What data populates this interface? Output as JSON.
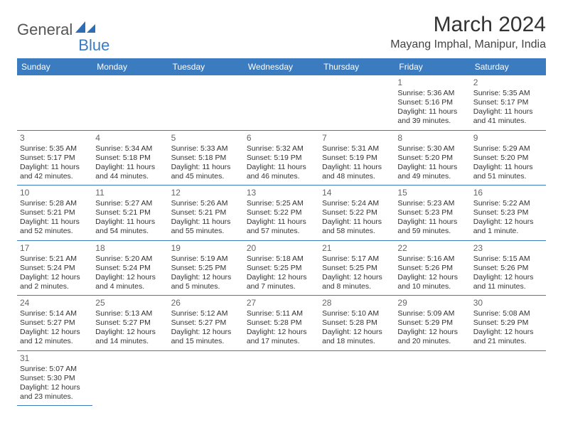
{
  "brand": {
    "part1": "General",
    "part2": "Blue"
  },
  "title": "March 2024",
  "location": "Mayang Imphal, Manipur, India",
  "weekdays": [
    "Sunday",
    "Monday",
    "Tuesday",
    "Wednesday",
    "Thursday",
    "Friday",
    "Saturday"
  ],
  "colors": {
    "header_bg": "#3b7bbf",
    "header_fg": "#ffffff",
    "border": "#3b7bbf",
    "daynum": "#666666",
    "text": "#333333",
    "logo_gray": "#555555",
    "logo_blue": "#3b7bbf"
  },
  "grid": [
    [
      null,
      null,
      null,
      null,
      null,
      {
        "n": "1",
        "sunrise": "Sunrise: 5:36 AM",
        "sunset": "Sunset: 5:16 PM",
        "day1": "Daylight: 11 hours",
        "day2": "and 39 minutes."
      },
      {
        "n": "2",
        "sunrise": "Sunrise: 5:35 AM",
        "sunset": "Sunset: 5:17 PM",
        "day1": "Daylight: 11 hours",
        "day2": "and 41 minutes."
      }
    ],
    [
      {
        "n": "3",
        "sunrise": "Sunrise: 5:35 AM",
        "sunset": "Sunset: 5:17 PM",
        "day1": "Daylight: 11 hours",
        "day2": "and 42 minutes."
      },
      {
        "n": "4",
        "sunrise": "Sunrise: 5:34 AM",
        "sunset": "Sunset: 5:18 PM",
        "day1": "Daylight: 11 hours",
        "day2": "and 44 minutes."
      },
      {
        "n": "5",
        "sunrise": "Sunrise: 5:33 AM",
        "sunset": "Sunset: 5:18 PM",
        "day1": "Daylight: 11 hours",
        "day2": "and 45 minutes."
      },
      {
        "n": "6",
        "sunrise": "Sunrise: 5:32 AM",
        "sunset": "Sunset: 5:19 PM",
        "day1": "Daylight: 11 hours",
        "day2": "and 46 minutes."
      },
      {
        "n": "7",
        "sunrise": "Sunrise: 5:31 AM",
        "sunset": "Sunset: 5:19 PM",
        "day1": "Daylight: 11 hours",
        "day2": "and 48 minutes."
      },
      {
        "n": "8",
        "sunrise": "Sunrise: 5:30 AM",
        "sunset": "Sunset: 5:20 PM",
        "day1": "Daylight: 11 hours",
        "day2": "and 49 minutes."
      },
      {
        "n": "9",
        "sunrise": "Sunrise: 5:29 AM",
        "sunset": "Sunset: 5:20 PM",
        "day1": "Daylight: 11 hours",
        "day2": "and 51 minutes."
      }
    ],
    [
      {
        "n": "10",
        "sunrise": "Sunrise: 5:28 AM",
        "sunset": "Sunset: 5:21 PM",
        "day1": "Daylight: 11 hours",
        "day2": "and 52 minutes."
      },
      {
        "n": "11",
        "sunrise": "Sunrise: 5:27 AM",
        "sunset": "Sunset: 5:21 PM",
        "day1": "Daylight: 11 hours",
        "day2": "and 54 minutes."
      },
      {
        "n": "12",
        "sunrise": "Sunrise: 5:26 AM",
        "sunset": "Sunset: 5:21 PM",
        "day1": "Daylight: 11 hours",
        "day2": "and 55 minutes."
      },
      {
        "n": "13",
        "sunrise": "Sunrise: 5:25 AM",
        "sunset": "Sunset: 5:22 PM",
        "day1": "Daylight: 11 hours",
        "day2": "and 57 minutes."
      },
      {
        "n": "14",
        "sunrise": "Sunrise: 5:24 AM",
        "sunset": "Sunset: 5:22 PM",
        "day1": "Daylight: 11 hours",
        "day2": "and 58 minutes."
      },
      {
        "n": "15",
        "sunrise": "Sunrise: 5:23 AM",
        "sunset": "Sunset: 5:23 PM",
        "day1": "Daylight: 11 hours",
        "day2": "and 59 minutes."
      },
      {
        "n": "16",
        "sunrise": "Sunrise: 5:22 AM",
        "sunset": "Sunset: 5:23 PM",
        "day1": "Daylight: 12 hours",
        "day2": "and 1 minute."
      }
    ],
    [
      {
        "n": "17",
        "sunrise": "Sunrise: 5:21 AM",
        "sunset": "Sunset: 5:24 PM",
        "day1": "Daylight: 12 hours",
        "day2": "and 2 minutes."
      },
      {
        "n": "18",
        "sunrise": "Sunrise: 5:20 AM",
        "sunset": "Sunset: 5:24 PM",
        "day1": "Daylight: 12 hours",
        "day2": "and 4 minutes."
      },
      {
        "n": "19",
        "sunrise": "Sunrise: 5:19 AM",
        "sunset": "Sunset: 5:25 PM",
        "day1": "Daylight: 12 hours",
        "day2": "and 5 minutes."
      },
      {
        "n": "20",
        "sunrise": "Sunrise: 5:18 AM",
        "sunset": "Sunset: 5:25 PM",
        "day1": "Daylight: 12 hours",
        "day2": "and 7 minutes."
      },
      {
        "n": "21",
        "sunrise": "Sunrise: 5:17 AM",
        "sunset": "Sunset: 5:25 PM",
        "day1": "Daylight: 12 hours",
        "day2": "and 8 minutes."
      },
      {
        "n": "22",
        "sunrise": "Sunrise: 5:16 AM",
        "sunset": "Sunset: 5:26 PM",
        "day1": "Daylight: 12 hours",
        "day2": "and 10 minutes."
      },
      {
        "n": "23",
        "sunrise": "Sunrise: 5:15 AM",
        "sunset": "Sunset: 5:26 PM",
        "day1": "Daylight: 12 hours",
        "day2": "and 11 minutes."
      }
    ],
    [
      {
        "n": "24",
        "sunrise": "Sunrise: 5:14 AM",
        "sunset": "Sunset: 5:27 PM",
        "day1": "Daylight: 12 hours",
        "day2": "and 12 minutes."
      },
      {
        "n": "25",
        "sunrise": "Sunrise: 5:13 AM",
        "sunset": "Sunset: 5:27 PM",
        "day1": "Daylight: 12 hours",
        "day2": "and 14 minutes."
      },
      {
        "n": "26",
        "sunrise": "Sunrise: 5:12 AM",
        "sunset": "Sunset: 5:27 PM",
        "day1": "Daylight: 12 hours",
        "day2": "and 15 minutes."
      },
      {
        "n": "27",
        "sunrise": "Sunrise: 5:11 AM",
        "sunset": "Sunset: 5:28 PM",
        "day1": "Daylight: 12 hours",
        "day2": "and 17 minutes."
      },
      {
        "n": "28",
        "sunrise": "Sunrise: 5:10 AM",
        "sunset": "Sunset: 5:28 PM",
        "day1": "Daylight: 12 hours",
        "day2": "and 18 minutes."
      },
      {
        "n": "29",
        "sunrise": "Sunrise: 5:09 AM",
        "sunset": "Sunset: 5:29 PM",
        "day1": "Daylight: 12 hours",
        "day2": "and 20 minutes."
      },
      {
        "n": "30",
        "sunrise": "Sunrise: 5:08 AM",
        "sunset": "Sunset: 5:29 PM",
        "day1": "Daylight: 12 hours",
        "day2": "and 21 minutes."
      }
    ],
    [
      {
        "n": "31",
        "sunrise": "Sunrise: 5:07 AM",
        "sunset": "Sunset: 5:30 PM",
        "day1": "Daylight: 12 hours",
        "day2": "and 23 minutes."
      },
      null,
      null,
      null,
      null,
      null,
      null
    ]
  ]
}
